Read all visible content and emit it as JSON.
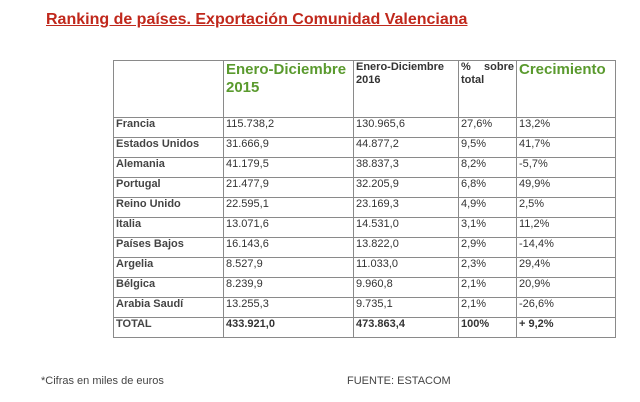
{
  "title": "Ranking de países. Exportación Comunidad Valenciana",
  "table": {
    "headers": {
      "country": "",
      "y2015": "Enero-Diciembre 2015",
      "y2016": "Enero-Diciembre 2016",
      "pct_a": "%",
      "pct_b": "sobre",
      "pct_c": "total",
      "growth": "Crecimiento"
    },
    "rows": [
      {
        "country": "Francia",
        "y2015": "115.738,2",
        "y2016": "130.965,6",
        "pct": "27,6%",
        "growth": "13,2%"
      },
      {
        "country": "Estados Unidos",
        "y2015": "31.666,9",
        "y2016": "44.877,2",
        "pct": "9,5%",
        "growth": "41,7%"
      },
      {
        "country": "Alemania",
        "y2015": "41.179,5",
        "y2016": "38.837,3",
        "pct": "8,2%",
        "growth": "-5,7%"
      },
      {
        "country": "Portugal",
        "y2015": "21.477,9",
        "y2016": "32.205,9",
        "pct": "6,8%",
        "growth": "49,9%"
      },
      {
        "country": "Reino Unido",
        "y2015": "22.595,1",
        "y2016": "23.169,3",
        "pct": "4,9%",
        "growth": "2,5%"
      },
      {
        "country": "Italia",
        "y2015": "13.071,6",
        "y2016": "14.531,0",
        "pct": "3,1%",
        "growth": "11,2%"
      },
      {
        "country": "Países Bajos",
        "y2015": "16.143,6",
        "y2016": "13.822,0",
        "pct": "2,9%",
        "growth": "-14,4%"
      },
      {
        "country": "Argelia",
        "y2015": "8.527,9",
        "y2016": "11.033,0",
        "pct": "2,3%",
        "growth": "29,4%"
      },
      {
        "country": "Bélgica",
        "y2015": "8.239,9",
        "y2016": "9.960,8",
        "pct": "2,1%",
        "growth": "20,9%"
      },
      {
        "country": "Arabia Saudí",
        "y2015": "13.255,3",
        "y2016": "9.735,1",
        "pct": "2,1%",
        "growth": "-26,6%"
      }
    ],
    "total": {
      "country": "TOTAL",
      "y2015": "433.921,0",
      "y2016": "473.863,4",
      "pct": "100%",
      "growth": "+ 9,2%"
    }
  },
  "footnote": "*Cifras en miles de euros",
  "source": "FUENTE: ESTACOM"
}
